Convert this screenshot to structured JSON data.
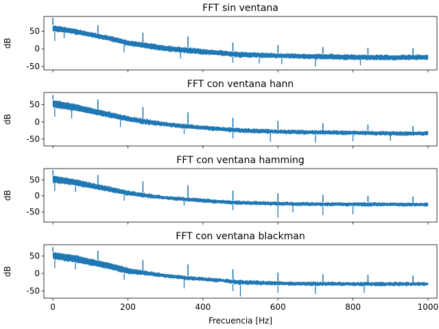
{
  "chart_data": [
    {
      "type": "line",
      "title": "FFT sin ventana",
      "xlabel": "",
      "ylabel": "dB",
      "xlim": [
        -24,
        1024
      ],
      "ylim": [
        -60,
        92
      ],
      "x_ticks": [
        0,
        200,
        400,
        600,
        800,
        1000
      ],
      "y_ticks": [
        -50,
        0,
        50
      ],
      "series": [
        {
          "color": "#1f77b4",
          "envelope": [
            [
              0,
              48,
              68
            ],
            [
              50,
              43,
              60
            ],
            [
              100,
              32,
              48
            ],
            [
              150,
              22,
              38
            ],
            [
              200,
              8,
              25
            ],
            [
              250,
              0,
              18
            ],
            [
              300,
              -8,
              10
            ],
            [
              350,
              -12,
              5
            ],
            [
              400,
              -17,
              0
            ],
            [
              450,
              -20,
              -4
            ],
            [
              500,
              -25,
              -8
            ],
            [
              600,
              -27,
              -12
            ],
            [
              700,
              -30,
              -14
            ],
            [
              800,
              -32,
              -16
            ],
            [
              900,
              -33,
              -17
            ],
            [
              1000,
              -32,
              -16
            ]
          ],
          "peaks": [
            [
              0,
              88
            ],
            [
              120,
              67
            ],
            [
              240,
              46
            ],
            [
              360,
              35
            ],
            [
              480,
              18
            ],
            [
              600,
              11
            ],
            [
              720,
              5
            ],
            [
              840,
              3
            ],
            [
              960,
              2
            ]
          ],
          "dips": [
            [
              5,
              22
            ],
            [
              30,
              30
            ],
            [
              190,
              -10
            ],
            [
              340,
              -28
            ],
            [
              480,
              -40
            ],
            [
              550,
              -42
            ],
            [
              610,
              -44
            ],
            [
              700,
              -50
            ],
            [
              820,
              -47
            ]
          ]
        }
      ]
    },
    {
      "type": "line",
      "title": "FFT con ventana hann",
      "xlabel": "",
      "ylabel": "dB",
      "xlim": [
        -24,
        1024
      ],
      "ylim": [
        -70,
        85
      ],
      "x_ticks": [
        0,
        200,
        400,
        600,
        800,
        1000
      ],
      "y_ticks": [
        -50,
        0,
        50
      ],
      "series": [
        {
          "color": "#1f77b4",
          "envelope": [
            [
              0,
              40,
              65
            ],
            [
              50,
              33,
              55
            ],
            [
              100,
              22,
              42
            ],
            [
              150,
              12,
              30
            ],
            [
              200,
              0,
              17
            ],
            [
              250,
              -8,
              8
            ],
            [
              300,
              -14,
              0
            ],
            [
              350,
              -20,
              -6
            ],
            [
              400,
              -24,
              -10
            ],
            [
              450,
              -28,
              -14
            ],
            [
              500,
              -32,
              -18
            ],
            [
              600,
              -35,
              -22
            ],
            [
              700,
              -37,
              -24
            ],
            [
              800,
              -38,
              -25
            ],
            [
              900,
              -40,
              -27
            ],
            [
              1000,
              -40,
              -27
            ]
          ],
          "peaks": [
            [
              0,
              78
            ],
            [
              120,
              65
            ],
            [
              240,
              43
            ],
            [
              360,
              28
            ],
            [
              480,
              12
            ],
            [
              600,
              3
            ],
            [
              720,
              -4
            ],
            [
              840,
              -8
            ],
            [
              960,
              -12
            ]
          ],
          "dips": [
            [
              5,
              15
            ],
            [
              50,
              10
            ],
            [
              180,
              -15
            ],
            [
              350,
              -35
            ],
            [
              480,
              -48
            ],
            [
              580,
              -58
            ],
            [
              700,
              -60
            ],
            [
              800,
              -56
            ],
            [
              900,
              -55
            ]
          ]
        }
      ]
    },
    {
      "type": "line",
      "title": "FFT con ventana hamming",
      "xlabel": "",
      "ylabel": "dB",
      "xlim": [
        -24,
        1024
      ],
      "ylim": [
        -82,
        85
      ],
      "x_ticks": [
        0,
        200,
        400,
        600,
        800,
        1000
      ],
      "y_ticks": [
        -50,
        0,
        50
      ],
      "series": [
        {
          "color": "#1f77b4",
          "envelope": [
            [
              0,
              40,
              64
            ],
            [
              50,
              33,
              55
            ],
            [
              100,
              22,
              42
            ],
            [
              150,
              12,
              30
            ],
            [
              200,
              0,
              17
            ],
            [
              250,
              -6,
              8
            ],
            [
              300,
              -12,
              0
            ],
            [
              350,
              -17,
              -4
            ],
            [
              400,
              -22,
              -8
            ],
            [
              450,
              -25,
              -12
            ],
            [
              500,
              -28,
              -15
            ],
            [
              600,
              -31,
              -18
            ],
            [
              700,
              -32,
              -20
            ],
            [
              800,
              -33,
              -20
            ],
            [
              900,
              -33,
              -21
            ],
            [
              1000,
              -33,
              -21
            ]
          ],
          "peaks": [
            [
              0,
              80
            ],
            [
              120,
              65
            ],
            [
              240,
              45
            ],
            [
              360,
              33
            ],
            [
              480,
              16
            ],
            [
              600,
              8
            ],
            [
              720,
              3
            ],
            [
              840,
              0
            ],
            [
              960,
              -2
            ]
          ],
          "dips": [
            [
              5,
              15
            ],
            [
              60,
              12
            ],
            [
              190,
              -15
            ],
            [
              350,
              -30
            ],
            [
              480,
              -45
            ],
            [
              600,
              -68
            ],
            [
              640,
              -52
            ],
            [
              720,
              -60
            ],
            [
              800,
              -58
            ]
          ]
        }
      ]
    },
    {
      "type": "line",
      "title": "FFT con ventana blackman",
      "xlabel": "Frecuencia [Hz]",
      "ylabel": "dB",
      "xlim": [
        -24,
        1024
      ],
      "ylim": [
        -70,
        82
      ],
      "x_ticks": [
        0,
        200,
        400,
        600,
        800,
        1000
      ],
      "y_ticks": [
        -50,
        0,
        50
      ],
      "series": [
        {
          "color": "#1f77b4",
          "envelope": [
            [
              0,
              40,
              62
            ],
            [
              50,
              33,
              55
            ],
            [
              100,
              22,
              43
            ],
            [
              150,
              12,
              32
            ],
            [
              200,
              -2,
              17
            ],
            [
              250,
              -6,
              8
            ],
            [
              300,
              -12,
              0
            ],
            [
              350,
              -18,
              -6
            ],
            [
              400,
              -22,
              -10
            ],
            [
              450,
              -25,
              -14
            ],
            [
              500,
              -32,
              -18
            ],
            [
              600,
              -34,
              -22
            ],
            [
              700,
              -35,
              -23
            ],
            [
              800,
              -35,
              -24
            ],
            [
              900,
              -36,
              -24
            ],
            [
              1000,
              -35,
              -24
            ]
          ],
          "peaks": [
            [
              0,
              75
            ],
            [
              120,
              65
            ],
            [
              240,
              38
            ],
            [
              360,
              26
            ],
            [
              480,
              12
            ],
            [
              600,
              3
            ],
            [
              720,
              -2
            ],
            [
              840,
              -4
            ],
            [
              960,
              -6
            ]
          ],
          "dips": [
            [
              5,
              15
            ],
            [
              60,
              12
            ],
            [
              190,
              -18
            ],
            [
              350,
              -42
            ],
            [
              480,
              -50
            ],
            [
              500,
              -65
            ],
            [
              600,
              -55
            ],
            [
              700,
              -58
            ],
            [
              830,
              -55
            ]
          ]
        }
      ]
    }
  ]
}
